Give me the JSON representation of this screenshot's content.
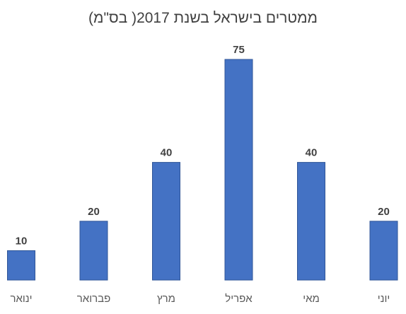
{
  "chart_data": {
    "type": "bar",
    "title": "ממטרים בישראל בשנת 2017( בס\"מ)",
    "categories": [
      "ינואר",
      "פברואר",
      "מרץ",
      "אפריל",
      "מאי",
      "יוני"
    ],
    "values": [
      10,
      20,
      40,
      75,
      40,
      20
    ],
    "xlabel": "",
    "ylabel": "",
    "ylim": [
      0,
      80
    ],
    "grid": false,
    "data_labels": true,
    "bar_color": "#4472C4"
  }
}
